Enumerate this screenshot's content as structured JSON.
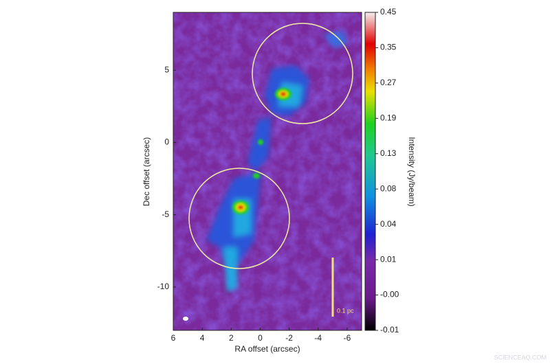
{
  "chart_data": {
    "type": "image",
    "xlabel": "RA offset (arcsec)",
    "ylabel": "Dec offset (arcsec)",
    "xlim": [
      6,
      -7
    ],
    "xticks": [
      6,
      4,
      2,
      0,
      -2,
      -4,
      -6
    ],
    "ylim": [
      -13,
      9
    ],
    "yticks": [
      -10,
      -5,
      0,
      5
    ],
    "colorbar_label": "Intensity (Jy/beam)",
    "colorbar_ticks": [
      -0.01,
      {
        "value": 0,
        "label": "-0.00"
      },
      0.01,
      0.04,
      0.08,
      0.13,
      0.19,
      0.27,
      0.35,
      0.45
    ],
    "annotations": [
      "0.1 pc"
    ]
  },
  "watermark": "SCIENCEAQ.COM"
}
